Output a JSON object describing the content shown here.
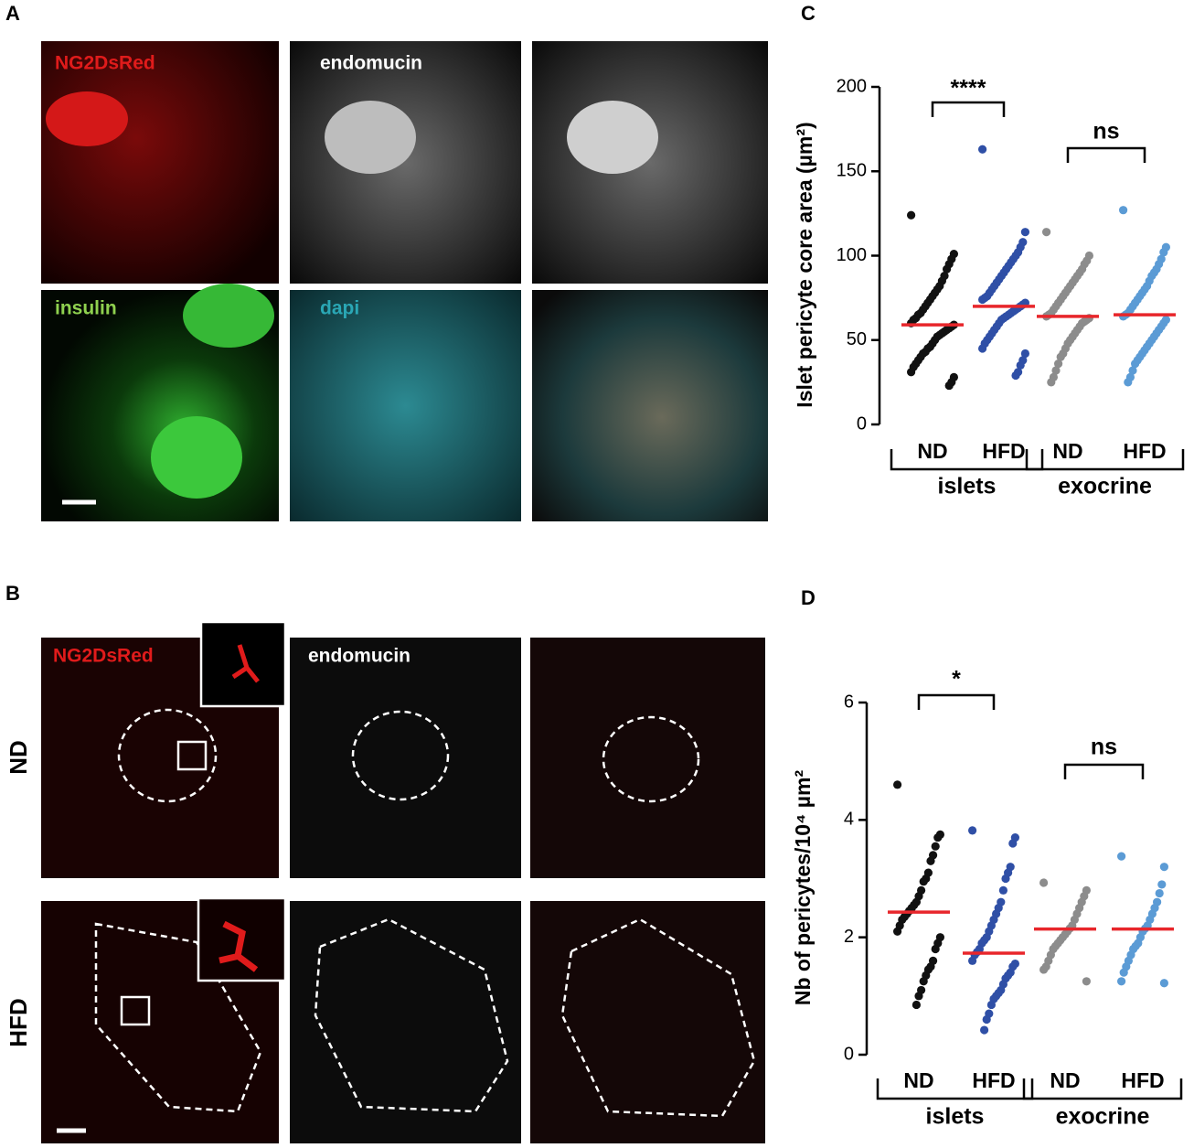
{
  "panel_labels": [
    "A",
    "B",
    "C",
    "D"
  ],
  "panel_a": {
    "labels": [
      "NG2DsRed",
      "endomucin",
      "insulin",
      "dapi"
    ]
  },
  "panel_b": {
    "labels": [
      "NG2DsRed",
      "endomucin"
    ],
    "rows": [
      "ND",
      "HFD"
    ]
  },
  "chart_data": [
    {
      "type": "strip",
      "y_label": "Islet pericyte core area (µm²)",
      "categories": [
        "ND",
        "HFD",
        "ND",
        "HFD"
      ],
      "groups": [
        "islets",
        "exocrine"
      ],
      "colors": [
        "#111111",
        "#2f4fa6",
        "#8c8c8c",
        "#5b9bd5"
      ],
      "mean_color": "#e8262b",
      "significance": [
        "****",
        "ns"
      ],
      "ylim": [
        0,
        200
      ],
      "yticks": [
        0,
        50,
        100,
        150,
        200
      ],
      "points": [
        [
          124,
          101,
          98,
          95,
          92,
          88,
          85,
          82,
          80,
          78,
          76,
          74,
          72,
          70,
          68,
          66,
          65,
          63,
          62,
          60,
          59,
          58,
          57,
          56,
          55,
          54,
          53,
          52,
          50,
          48,
          46,
          45,
          43,
          42,
          40,
          38,
          36,
          34,
          31,
          28,
          25,
          23
        ],
        [
          163,
          114,
          108,
          105,
          102,
          100,
          98,
          96,
          94,
          92,
          90,
          88,
          86,
          84,
          82,
          80,
          78,
          76,
          75,
          74,
          72,
          71,
          70,
          69,
          68,
          67,
          66,
          65,
          64,
          63,
          62,
          60,
          58,
          56,
          54,
          52,
          50,
          48,
          45,
          42,
          38,
          35,
          31,
          29
        ],
        [
          114,
          100,
          97,
          95,
          92,
          90,
          88,
          86,
          84,
          82,
          80,
          78,
          76,
          74,
          72,
          70,
          68,
          66,
          65,
          64,
          63,
          62,
          61,
          60,
          58,
          56,
          54,
          52,
          50,
          48,
          45,
          42,
          40,
          36,
          32,
          28,
          25
        ],
        [
          127,
          105,
          102,
          98,
          95,
          92,
          90,
          88,
          85,
          82,
          80,
          78,
          76,
          74,
          72,
          70,
          68,
          66,
          65,
          64,
          62,
          60,
          58,
          56,
          54,
          52,
          50,
          48,
          46,
          44,
          42,
          40,
          38,
          36,
          32,
          28,
          25
        ]
      ],
      "means": [
        59,
        70,
        64,
        65
      ]
    },
    {
      "type": "strip",
      "y_label": "Nb of pericytes/10⁴ µm²",
      "categories": [
        "ND",
        "HFD",
        "ND",
        "HFD"
      ],
      "groups": [
        "islets",
        "exocrine"
      ],
      "colors": [
        "#111111",
        "#2f4fa6",
        "#8c8c8c",
        "#5b9bd5"
      ],
      "mean_color": "#e8262b",
      "significance": [
        "*",
        "ns"
      ],
      "ylim": [
        0,
        6
      ],
      "yticks": [
        0,
        2,
        4,
        6
      ],
      "points": [
        [
          4.6,
          3.75,
          3.7,
          3.55,
          3.4,
          3.3,
          3.1,
          3.0,
          2.95,
          2.8,
          2.7,
          2.6,
          2.55,
          2.5,
          2.45,
          2.4,
          2.35,
          2.3,
          2.2,
          2.1,
          2.0,
          1.9,
          1.8,
          1.6,
          1.5,
          1.45,
          1.35,
          1.25,
          1.1,
          1.0,
          0.85
        ],
        [
          3.82,
          3.7,
          3.6,
          3.2,
          3.1,
          3.0,
          2.8,
          2.6,
          2.5,
          2.4,
          2.3,
          2.2,
          2.1,
          2.0,
          1.95,
          1.9,
          1.8,
          1.75,
          1.7,
          1.6,
          1.55,
          1.5,
          1.4,
          1.35,
          1.3,
          1.2,
          1.1,
          1.05,
          1.0,
          0.95,
          0.85,
          0.7,
          0.6,
          0.42
        ],
        [
          2.93,
          2.8,
          2.7,
          2.6,
          2.5,
          2.4,
          2.3,
          2.2,
          2.15,
          2.1,
          2.05,
          2.0,
          1.95,
          1.9,
          1.85,
          1.8,
          1.7,
          1.6,
          1.5,
          1.45,
          1.25
        ],
        [
          3.38,
          3.2,
          2.9,
          2.75,
          2.6,
          2.5,
          2.4,
          2.3,
          2.2,
          2.15,
          2.1,
          2.0,
          1.9,
          1.85,
          1.8,
          1.7,
          1.6,
          1.5,
          1.4,
          1.25,
          1.22
        ]
      ],
      "means": [
        2.43,
        1.73,
        2.14,
        2.14
      ]
    }
  ]
}
